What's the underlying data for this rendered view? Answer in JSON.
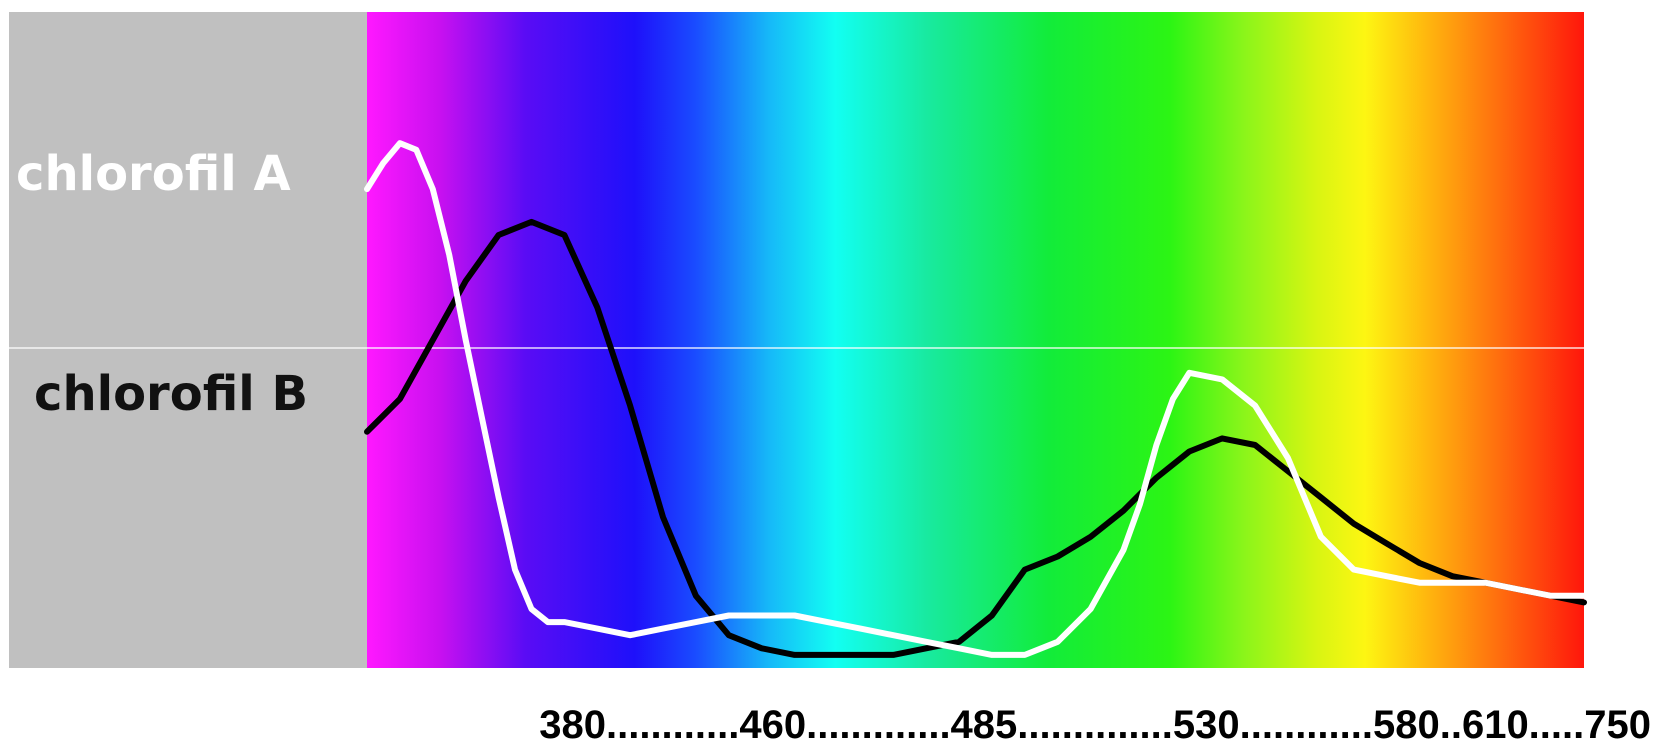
{
  "chart_data": {
    "type": "line",
    "title": "",
    "xlabel": "",
    "ylabel": "",
    "x_axis_label": "380............460.............485..............530............580..610.....750",
    "x_ticks": [
      380,
      460,
      485,
      530,
      580,
      610,
      750
    ],
    "ylim": [
      0,
      1
    ],
    "background": "visible-spectrum",
    "series": [
      {
        "name": "chlorofil A",
        "color": "#ffffff",
        "x": [
          380,
          385,
          390,
          395,
          400,
          405,
          410,
          415,
          420,
          425,
          430,
          435,
          440,
          450,
          460,
          470,
          480,
          490,
          500,
          510,
          520,
          530,
          540,
          550,
          560,
          570,
          580,
          590,
          600,
          610,
          615,
          620,
          625,
          630,
          640,
          650,
          660,
          670,
          680,
          690,
          700,
          710,
          720,
          730,
          740,
          750
        ],
        "values": [
          0.73,
          0.77,
          0.8,
          0.79,
          0.73,
          0.63,
          0.5,
          0.38,
          0.26,
          0.15,
          0.09,
          0.07,
          0.07,
          0.06,
          0.05,
          0.06,
          0.07,
          0.08,
          0.08,
          0.08,
          0.07,
          0.06,
          0.05,
          0.04,
          0.03,
          0.02,
          0.02,
          0.04,
          0.09,
          0.18,
          0.25,
          0.34,
          0.41,
          0.45,
          0.44,
          0.4,
          0.32,
          0.2,
          0.15,
          0.14,
          0.13,
          0.13,
          0.13,
          0.12,
          0.11,
          0.11
        ]
      },
      {
        "name": "chlorofil B",
        "color": "#000000",
        "x": [
          380,
          390,
          400,
          410,
          420,
          430,
          440,
          450,
          460,
          470,
          480,
          490,
          500,
          510,
          520,
          530,
          540,
          550,
          560,
          570,
          580,
          590,
          600,
          610,
          620,
          630,
          640,
          650,
          660,
          670,
          680,
          690,
          700,
          710,
          720,
          730,
          740,
          750
        ],
        "values": [
          0.36,
          0.41,
          0.5,
          0.59,
          0.66,
          0.68,
          0.66,
          0.55,
          0.4,
          0.23,
          0.11,
          0.05,
          0.03,
          0.02,
          0.02,
          0.02,
          0.02,
          0.03,
          0.04,
          0.08,
          0.15,
          0.17,
          0.2,
          0.24,
          0.29,
          0.33,
          0.35,
          0.34,
          0.3,
          0.26,
          0.22,
          0.19,
          0.16,
          0.14,
          0.13,
          0.12,
          0.11,
          0.1
        ]
      }
    ]
  }
}
